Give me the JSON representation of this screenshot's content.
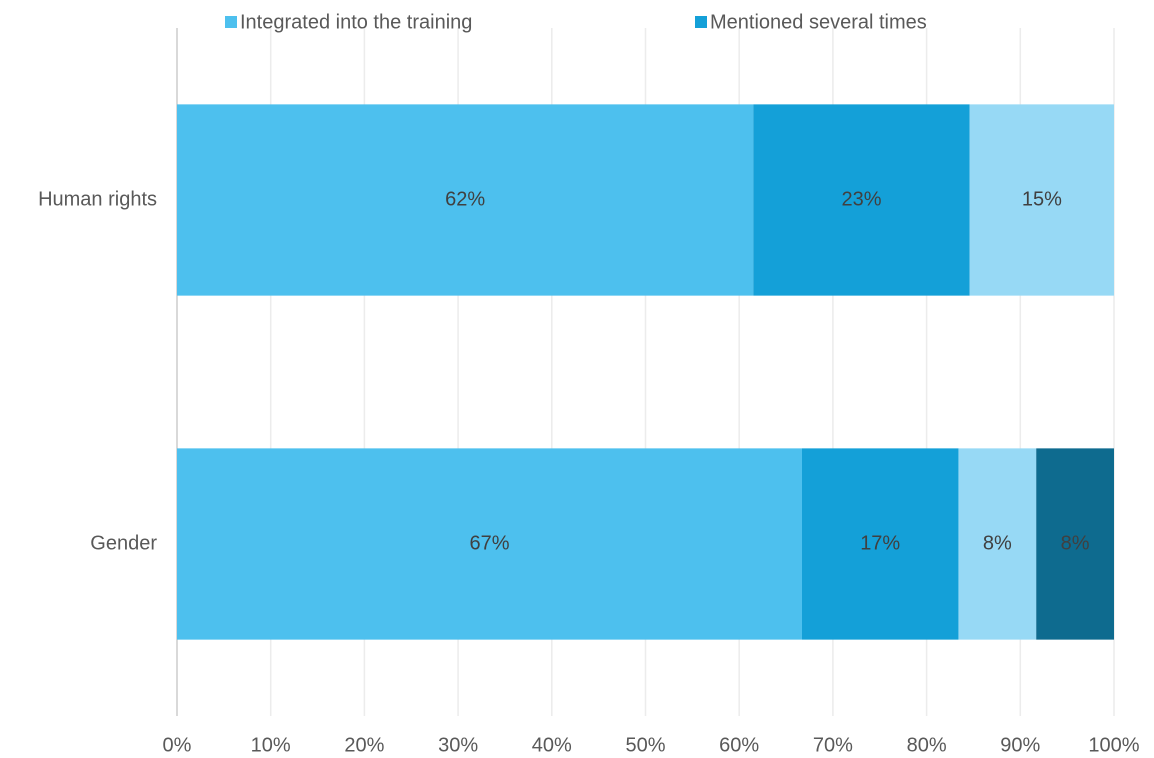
{
  "chart_data": {
    "type": "stacked-barh",
    "categories": [
      "Human rights",
      "Gender"
    ],
    "series": [
      {
        "name": "Integrated into the training",
        "color": "#4dc0ee",
        "values": [
          61.5,
          66.7
        ],
        "value_labels": [
          "62%",
          "67%"
        ]
      },
      {
        "name": "Mentioned several times",
        "color": "#14a0d8",
        "values": [
          23.1,
          16.7
        ],
        "value_labels": [
          "23%",
          "17%"
        ]
      },
      {
        "color": "#97d9f5",
        "values": [
          15.4,
          8.3
        ],
        "value_labels": [
          "15%",
          "8%"
        ]
      },
      {
        "color": "#0e6b8f",
        "values": [
          null,
          8.3
        ],
        "value_labels": [
          null,
          "8%"
        ]
      }
    ],
    "xlim": [
      0,
      100
    ],
    "xticks": [
      {
        "value": 0,
        "label": "0%"
      },
      {
        "value": 10,
        "label": "10%"
      },
      {
        "value": 20,
        "label": "20%"
      },
      {
        "value": 30,
        "label": "30%"
      },
      {
        "value": 40,
        "label": "40%"
      },
      {
        "value": 50,
        "label": "50%"
      },
      {
        "value": 60,
        "label": "60%"
      },
      {
        "value": 70,
        "label": "70%"
      },
      {
        "value": 80,
        "label": "80%"
      },
      {
        "value": 90,
        "label": "90%"
      },
      {
        "value": 100,
        "label": "100%"
      }
    ],
    "grid": true
  }
}
